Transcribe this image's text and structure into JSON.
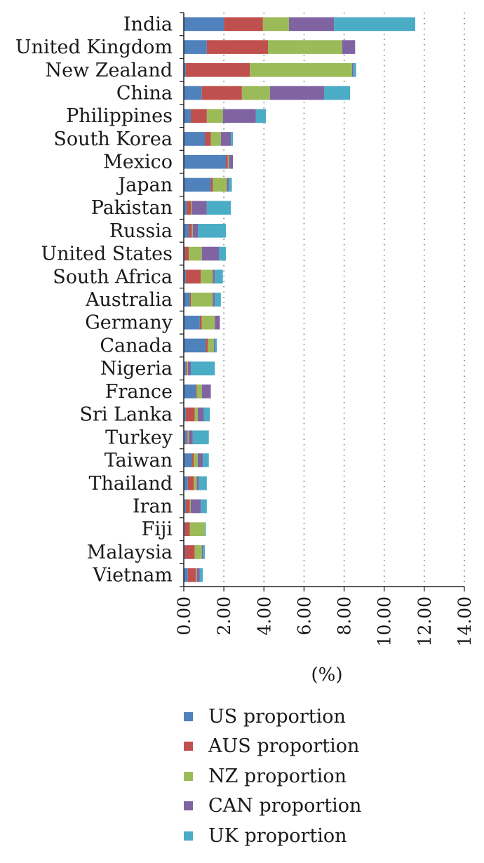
{
  "chart_data": {
    "type": "bar",
    "orientation": "horizontal",
    "stacked": true,
    "title": "",
    "xlabel": "(%)",
    "ylabel": "",
    "xlim": [
      0,
      14
    ],
    "x_ticks": [
      "0.00",
      "2.00",
      "4.00",
      "6.00",
      "8.00",
      "10.00",
      "12.00",
      "14.00"
    ],
    "grid": "vertical-dotted",
    "legend_position": "bottom",
    "categories": [
      "India",
      "United Kingdom",
      "New Zealand",
      "China",
      "Philippines",
      "South Korea",
      "Mexico",
      "Japan",
      "Pakistan",
      "Russia",
      "United States",
      "South Africa",
      "Australia",
      "Germany",
      "Canada",
      "Nigeria",
      "France",
      "Sri Lanka",
      "Turkey",
      "Taiwan",
      "Thailand",
      "Iran",
      "Fiji",
      "Malaysia",
      "Vietnam"
    ],
    "series": [
      {
        "name": "US proportion",
        "color": "#4f81bd",
        "values": [
          2.0,
          1.15,
          0.1,
          0.9,
          0.35,
          1.05,
          2.1,
          1.35,
          0.15,
          0.25,
          0.05,
          0.1,
          0.3,
          0.8,
          1.1,
          0.1,
          0.6,
          0.1,
          0.15,
          0.4,
          0.2,
          0.1,
          0.05,
          0.05,
          0.2
        ]
      },
      {
        "name": "AUS proportion",
        "color": "#c0504d",
        "values": [
          1.95,
          3.05,
          3.2,
          2.0,
          0.8,
          0.3,
          0.1,
          0.1,
          0.2,
          0.15,
          0.2,
          0.75,
          0.05,
          0.1,
          0.1,
          0.05,
          0.05,
          0.45,
          0.05,
          0.1,
          0.3,
          0.2,
          0.25,
          0.5,
          0.4
        ]
      },
      {
        "name": "NZ proportion",
        "color": "#9bbb59",
        "values": [
          1.3,
          3.7,
          5.1,
          1.4,
          0.8,
          0.5,
          0.05,
          0.7,
          0.05,
          0.05,
          0.65,
          0.6,
          1.1,
          0.65,
          0.3,
          0.05,
          0.25,
          0.15,
          0.05,
          0.2,
          0.15,
          0.05,
          0.75,
          0.35,
          0.05
        ]
      },
      {
        "name": "CAN proportion",
        "color": "#8064a2",
        "values": [
          2.25,
          0.65,
          0.05,
          2.7,
          1.65,
          0.5,
          0.2,
          0.1,
          0.75,
          0.25,
          0.85,
          0.1,
          0.1,
          0.25,
          0.05,
          0.15,
          0.45,
          0.3,
          0.2,
          0.25,
          0.1,
          0.5,
          0.0,
          0.05,
          0.15
        ]
      },
      {
        "name": "UK proportion",
        "color": "#4bacc6",
        "values": [
          4.05,
          0.0,
          0.15,
          1.3,
          0.5,
          0.1,
          0.0,
          0.15,
          1.2,
          1.4,
          0.35,
          0.4,
          0.3,
          0.0,
          0.1,
          1.2,
          0.0,
          0.3,
          0.8,
          0.3,
          0.4,
          0.3,
          0.05,
          0.1,
          0.15
        ]
      }
    ]
  }
}
